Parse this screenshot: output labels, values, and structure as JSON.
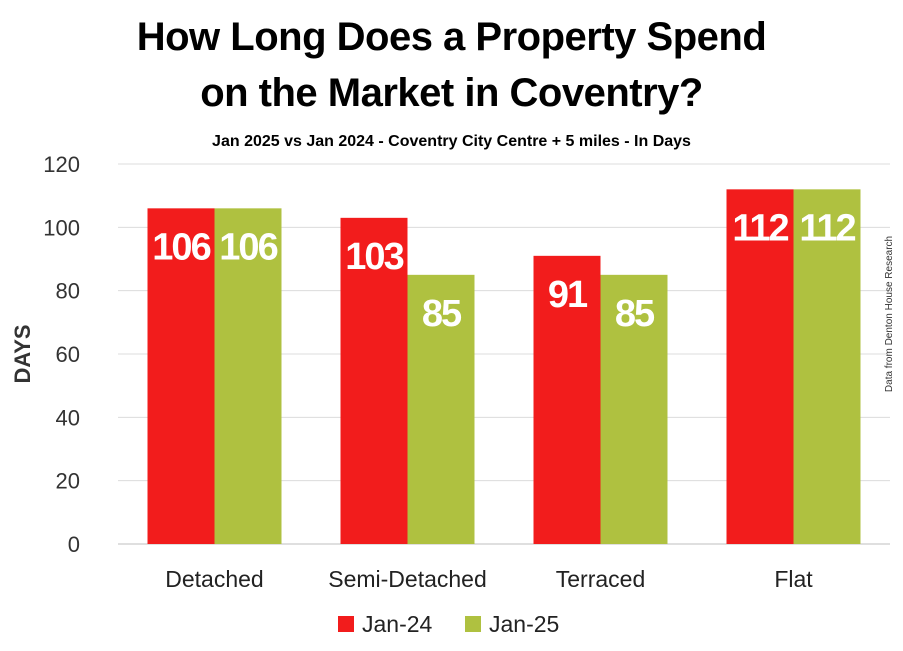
{
  "title_lines": [
    "How Long Does a Property Spend",
    "on the Market in Coventry?"
  ],
  "subtitle": "Jan 2025 vs Jan 2024 - Coventry City Centre + 5 miles - In Days",
  "source_note": "Data from Denton House Research",
  "chart_data": {
    "type": "bar",
    "title": "How Long Does a Property Spend on the Market in Coventry?",
    "subtitle": "Jan 2025 vs Jan 2024 - Coventry City Centre + 5 miles - In Days",
    "xlabel": "",
    "ylabel": "DAYS",
    "ylim": [
      0,
      120
    ],
    "yticks": [
      0,
      20,
      40,
      60,
      80,
      100,
      120
    ],
    "grid": true,
    "legend": "bottom",
    "categories": [
      "Detached",
      "Semi-Detached",
      "Terraced",
      "Flat"
    ],
    "series": [
      {
        "name": "Jan-24",
        "color": "#f21c1c",
        "values": [
          106,
          103,
          91,
          112
        ]
      },
      {
        "name": "Jan-25",
        "color": "#afc140",
        "values": [
          106,
          85,
          85,
          112
        ]
      }
    ]
  }
}
